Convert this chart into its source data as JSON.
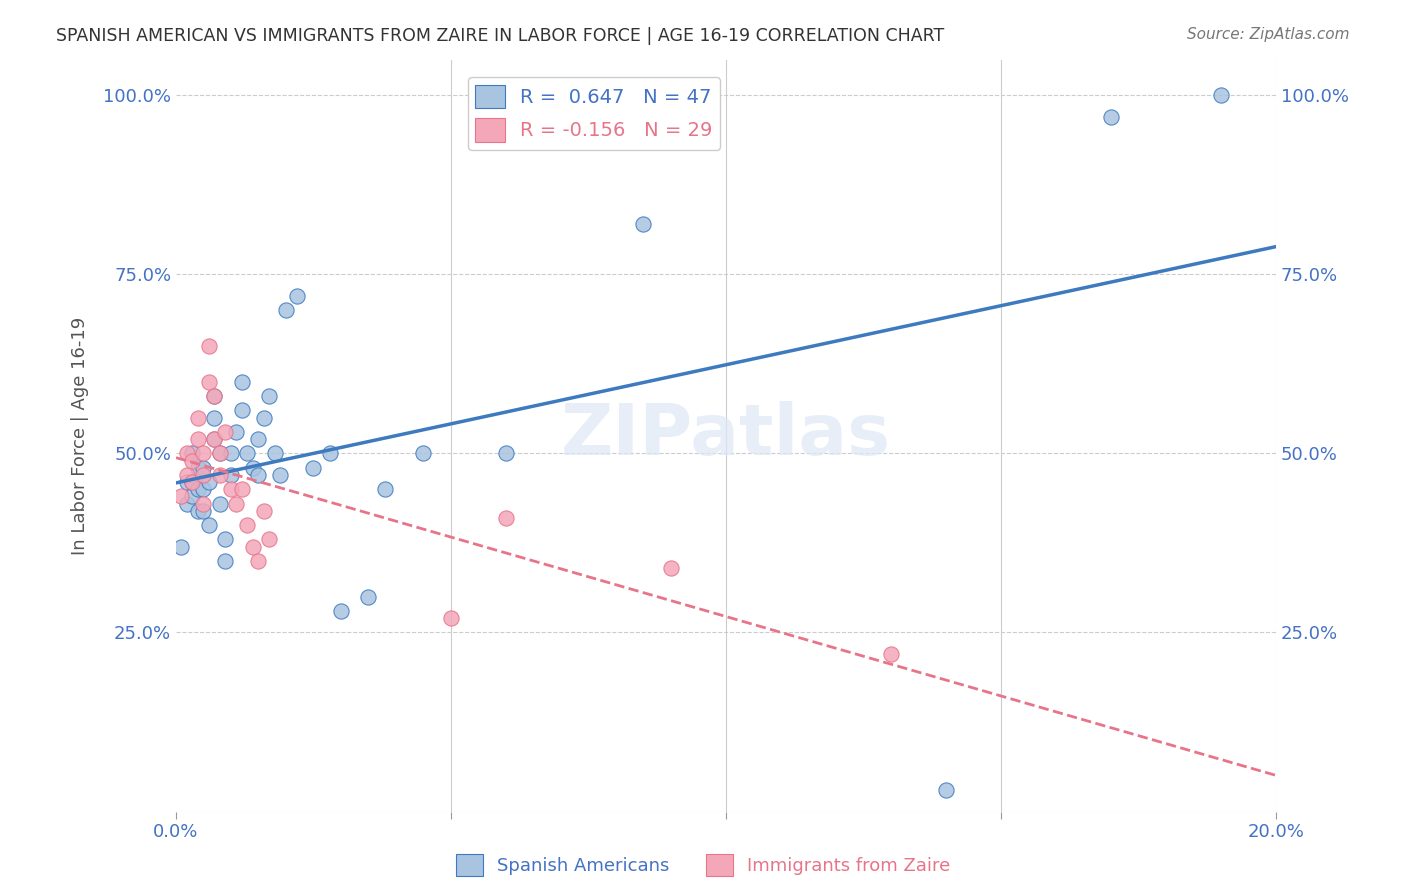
{
  "title": "SPANISH AMERICAN VS IMMIGRANTS FROM ZAIRE IN LABOR FORCE | AGE 16-19 CORRELATION CHART",
  "source": "Source: ZipAtlas.com",
  "xlabel": "",
  "ylabel": "In Labor Force | Age 16-19",
  "xlim": [
    0.0,
    0.2
  ],
  "ylim": [
    0.0,
    1.05
  ],
  "xticks": [
    0.0,
    0.05,
    0.1,
    0.15,
    0.2
  ],
  "xticklabels": [
    "0.0%",
    "",
    "",
    "",
    "20.0%"
  ],
  "yticks": [
    0.0,
    0.25,
    0.5,
    0.75,
    1.0
  ],
  "yticklabels": [
    "",
    "25.0%",
    "50.0%",
    "75.0%",
    "100.0%"
  ],
  "blue_R": 0.647,
  "blue_N": 47,
  "pink_R": -0.156,
  "pink_N": 29,
  "blue_color": "#a8c4e0",
  "pink_color": "#f4a7b9",
  "blue_line_color": "#3d7abf",
  "pink_line_color": "#e8748a",
  "watermark": "ZIPatlas",
  "blue_x": [
    0.001,
    0.002,
    0.002,
    0.003,
    0.003,
    0.003,
    0.004,
    0.004,
    0.004,
    0.005,
    0.005,
    0.005,
    0.006,
    0.006,
    0.007,
    0.007,
    0.007,
    0.008,
    0.008,
    0.009,
    0.009,
    0.01,
    0.01,
    0.011,
    0.012,
    0.012,
    0.013,
    0.014,
    0.015,
    0.015,
    0.016,
    0.017,
    0.018,
    0.019,
    0.02,
    0.022,
    0.025,
    0.028,
    0.03,
    0.035,
    0.038,
    0.045,
    0.06,
    0.085,
    0.14,
    0.17,
    0.19
  ],
  "blue_y": [
    0.37,
    0.43,
    0.46,
    0.44,
    0.46,
    0.5,
    0.42,
    0.45,
    0.48,
    0.42,
    0.45,
    0.48,
    0.4,
    0.46,
    0.52,
    0.55,
    0.58,
    0.43,
    0.5,
    0.35,
    0.38,
    0.47,
    0.5,
    0.53,
    0.56,
    0.6,
    0.5,
    0.48,
    0.47,
    0.52,
    0.55,
    0.58,
    0.5,
    0.47,
    0.7,
    0.72,
    0.48,
    0.5,
    0.28,
    0.3,
    0.45,
    0.5,
    0.5,
    0.82,
    0.03,
    0.97,
    1.0
  ],
  "pink_x": [
    0.001,
    0.002,
    0.002,
    0.003,
    0.003,
    0.004,
    0.004,
    0.005,
    0.005,
    0.005,
    0.006,
    0.006,
    0.007,
    0.007,
    0.008,
    0.008,
    0.009,
    0.01,
    0.011,
    0.012,
    0.013,
    0.014,
    0.015,
    0.016,
    0.017,
    0.05,
    0.06,
    0.09,
    0.13
  ],
  "pink_y": [
    0.44,
    0.47,
    0.5,
    0.46,
    0.49,
    0.52,
    0.55,
    0.43,
    0.47,
    0.5,
    0.6,
    0.65,
    0.52,
    0.58,
    0.47,
    0.5,
    0.53,
    0.45,
    0.43,
    0.45,
    0.4,
    0.37,
    0.35,
    0.42,
    0.38,
    0.27,
    0.41,
    0.34,
    0.22
  ]
}
